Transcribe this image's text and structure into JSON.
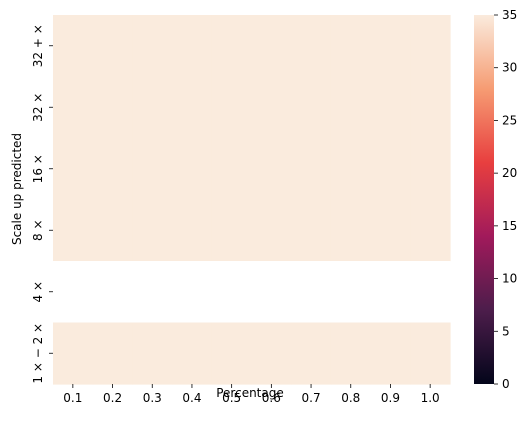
{
  "chart_data": {
    "type": "heatmap",
    "xlabel": "Percentage",
    "ylabel": "Scale up predicted",
    "x_categories": [
      "0.1",
      "0.2",
      "0.3",
      "0.4",
      "0.5",
      "0.6",
      "0.7",
      "0.8",
      "0.9",
      "1.0"
    ],
    "y_categories": [
      "32 + ×",
      "32 ×",
      "16 ×",
      "8 ×",
      "4 ×",
      "1 × − 2 ×"
    ],
    "values": [
      [
        35,
        35,
        35,
        35,
        35,
        35,
        35,
        35,
        35,
        35
      ],
      [
        35,
        35,
        35,
        35,
        35,
        35,
        35,
        35,
        35,
        35
      ],
      [
        35,
        35,
        35,
        35,
        35,
        35,
        35,
        35,
        35,
        35
      ],
      [
        35,
        35,
        35,
        35,
        35,
        35,
        35,
        35,
        35,
        35
      ],
      [
        null,
        null,
        null,
        null,
        null,
        null,
        null,
        null,
        null,
        null
      ],
      [
        35,
        35,
        35,
        35,
        35,
        35,
        35,
        35,
        35,
        35
      ]
    ],
    "colorbar": {
      "min": 0,
      "max": 35,
      "ticks": [
        0,
        5,
        10,
        15,
        20,
        25,
        30,
        35
      ],
      "colormap": "rocket",
      "colors": [
        "#03051a",
        "#4c1d4b",
        "#a11a5b",
        "#e83f3f",
        "#f69c73",
        "#faebdd"
      ]
    },
    "missing_color": "#ffffff",
    "grid": false
  }
}
